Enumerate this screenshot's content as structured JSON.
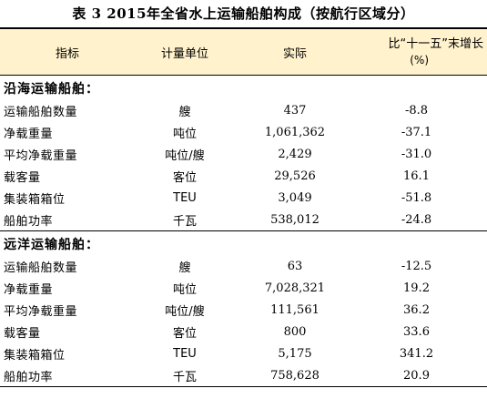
{
  "title": "表 3  2015年全省水上运输船舶构成（按航行区域分）",
  "header": {
    "indicator": "指标",
    "unit": "计量单位",
    "actual": "实际",
    "change_line1": "比“十一五”末增长",
    "change_line2": "(%)"
  },
  "sections": [
    {
      "label": "沿海运输船舶：",
      "rows": [
        {
          "name": "运输船舶数量",
          "unit": "艘",
          "actual": "437",
          "change": "-8.8"
        },
        {
          "name": "净载重量",
          "unit": "吨位",
          "actual": "1,061,362",
          "change": "-37.1"
        },
        {
          "name": "平均净载重量",
          "unit": "吨位/艘",
          "actual": "2,429",
          "change": "-31.0"
        },
        {
          "name": "载客量",
          "unit": "客位",
          "actual": "29,526",
          "change": "16.1"
        },
        {
          "name": "集装箱箱位",
          "unit": "TEU",
          "actual": "3,049",
          "change": "-51.8"
        },
        {
          "name": "船舶功率",
          "unit": "千瓦",
          "actual": "538,012",
          "change": "-24.8"
        }
      ]
    },
    {
      "label": "远洋运输船舶：",
      "rows": [
        {
          "name": "运输船舶数量",
          "unit": "艘",
          "actual": "63",
          "change": "-12.5"
        },
        {
          "name": "净载重量",
          "unit": "吨位",
          "actual": "7,028,321",
          "change": "19.2"
        },
        {
          "name": "平均净载重量",
          "unit": "吨位/艘",
          "actual": "111,561",
          "change": "36.2"
        },
        {
          "name": "载客量",
          "unit": "客位",
          "actual": "800",
          "change": "33.6"
        },
        {
          "name": "集装箱箱位",
          "unit": "TEU",
          "actual": "5,175",
          "change": "341.2"
        },
        {
          "name": "船舶功率",
          "unit": "千瓦",
          "actual": "758,628",
          "change": "20.9"
        }
      ]
    }
  ]
}
